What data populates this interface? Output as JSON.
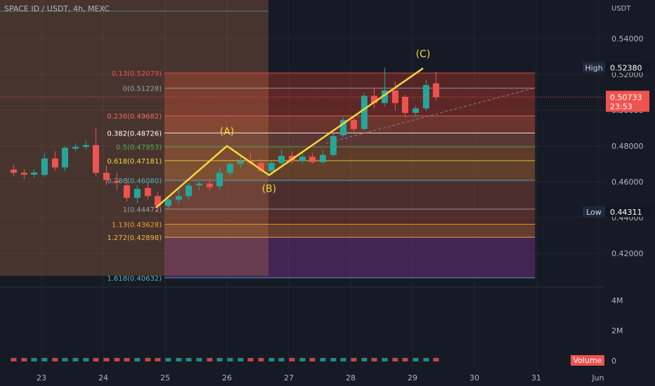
{
  "header": {
    "title": "SPACE ID / USDT, 4h, MEXC"
  },
  "axis": {
    "currency": "USDT",
    "price_ticks": [
      "0.54000",
      "0.52000",
      "0.50000",
      "0.48000",
      "0.46000",
      "0.44000",
      "0.42000"
    ],
    "volume_ticks": [
      "4M",
      "2M",
      "0"
    ],
    "time_labels": [
      "23",
      "24",
      "25",
      "26",
      "27",
      "28",
      "29",
      "30",
      "31",
      "Jun"
    ]
  },
  "badges": {
    "high_label": "High",
    "high_value": "0.52380",
    "low_label": "Low",
    "low_value": "0.44311",
    "last_value": "0.50733",
    "countdown": "23:53",
    "volume_label": "Volume"
  },
  "colors": {
    "up": "#26a69a",
    "down": "#ef5350",
    "wave": "#f5d63d",
    "background": "#161a25"
  },
  "chart_data": {
    "type": "candlestick",
    "symbol": "SPACE ID / USDT",
    "interval": "4h",
    "exchange": "MEXC",
    "ylim": [
      0.405,
      0.548
    ],
    "fib_levels": [
      {
        "ratio": "0.13",
        "label": "0.13(0.52079)",
        "price": 0.52079,
        "color": "#ef5350"
      },
      {
        "ratio": "0",
        "label": "0(0.51228)",
        "price": 0.51228,
        "color": "#9aa0a6"
      },
      {
        "ratio": "0.236",
        "label": "0.236(0.49682)",
        "price": 0.49682,
        "color": "#f06b5e"
      },
      {
        "ratio": "0.382",
        "label": "0.382(0.48726)",
        "price": 0.48726,
        "color": "#ffffff"
      },
      {
        "ratio": "0.5",
        "label": "0.5(0.47953)",
        "price": 0.47953,
        "color": "#4caf50"
      },
      {
        "ratio": "0.618",
        "label": "0.618(0.47181)",
        "price": 0.47181,
        "color": "#f5d63d"
      },
      {
        "ratio": "0.786",
        "label": "0.786(0.46080)",
        "price": 0.4608,
        "color": "#4fb3bf"
      },
      {
        "ratio": "1",
        "label": "1(0.44472)",
        "price": 0.44472,
        "color": "#9aa0a6"
      },
      {
        "ratio": "1.13",
        "label": "1.13(0.43628)",
        "price": 0.43628,
        "color": "#f59e2a"
      },
      {
        "ratio": "1.272",
        "label": "1.272(0.42898)",
        "price": 0.42898,
        "color": "#f5b14a"
      },
      {
        "ratio": "1.618",
        "label": "1.618(0.40632)",
        "price": 0.40632,
        "color": "#4fb3bf"
      }
    ],
    "waves": [
      {
        "label": "(A)",
        "date": 26.0,
        "price": 0.48
      },
      {
        "label": "(B)",
        "date": 26.68,
        "price": 0.4637
      },
      {
        "label": "(C)",
        "date": 29.17,
        "price": 0.5234
      }
    ],
    "wave_start": {
      "date": 24.85,
      "price": 0.4455
    },
    "high": 0.5238,
    "low": 0.44311,
    "last": 0.50733,
    "candles": [
      {
        "t": 22.55,
        "o": 0.4668,
        "h": 0.4695,
        "l": 0.463,
        "c": 0.465
      },
      {
        "t": 22.72,
        "o": 0.465,
        "h": 0.467,
        "l": 0.4615,
        "c": 0.464
      },
      {
        "t": 22.88,
        "o": 0.464,
        "h": 0.4668,
        "l": 0.4622,
        "c": 0.4652
      },
      {
        "t": 23.05,
        "o": 0.4638,
        "h": 0.476,
        "l": 0.4625,
        "c": 0.473
      },
      {
        "t": 23.22,
        "o": 0.473,
        "h": 0.477,
        "l": 0.466,
        "c": 0.468
      },
      {
        "t": 23.38,
        "o": 0.468,
        "h": 0.48,
        "l": 0.466,
        "c": 0.479
      },
      {
        "t": 23.55,
        "o": 0.4785,
        "h": 0.4815,
        "l": 0.477,
        "c": 0.4795
      },
      {
        "t": 23.72,
        "o": 0.4795,
        "h": 0.483,
        "l": 0.478,
        "c": 0.4805
      },
      {
        "t": 23.88,
        "o": 0.4805,
        "h": 0.49,
        "l": 0.463,
        "c": 0.465
      },
      {
        "t": 24.05,
        "o": 0.465,
        "h": 0.469,
        "l": 0.458,
        "c": 0.461
      },
      {
        "t": 24.22,
        "o": 0.4605,
        "h": 0.465,
        "l": 0.4555,
        "c": 0.4595
      },
      {
        "t": 24.38,
        "o": 0.458,
        "h": 0.462,
        "l": 0.449,
        "c": 0.451
      },
      {
        "t": 24.55,
        "o": 0.451,
        "h": 0.458,
        "l": 0.448,
        "c": 0.456
      },
      {
        "t": 24.72,
        "o": 0.4565,
        "h": 0.459,
        "l": 0.45,
        "c": 0.452
      },
      {
        "t": 24.88,
        "o": 0.452,
        "h": 0.454,
        "l": 0.4431,
        "c": 0.4465
      },
      {
        "t": 25.05,
        "o": 0.4465,
        "h": 0.451,
        "l": 0.445,
        "c": 0.45
      },
      {
        "t": 25.22,
        "o": 0.45,
        "h": 0.456,
        "l": 0.448,
        "c": 0.452
      },
      {
        "t": 25.38,
        "o": 0.452,
        "h": 0.459,
        "l": 0.45,
        "c": 0.458
      },
      {
        "t": 25.55,
        "o": 0.458,
        "h": 0.46,
        "l": 0.4555,
        "c": 0.459
      },
      {
        "t": 25.72,
        "o": 0.459,
        "h": 0.462,
        "l": 0.455,
        "c": 0.457
      },
      {
        "t": 25.88,
        "o": 0.4575,
        "h": 0.468,
        "l": 0.4555,
        "c": 0.465
      },
      {
        "t": 26.05,
        "o": 0.465,
        "h": 0.471,
        "l": 0.463,
        "c": 0.47
      },
      {
        "t": 26.22,
        "o": 0.47,
        "h": 0.475,
        "l": 0.468,
        "c": 0.4715
      },
      {
        "t": 26.38,
        "o": 0.4715,
        "h": 0.476,
        "l": 0.469,
        "c": 0.4705
      },
      {
        "t": 26.55,
        "o": 0.4705,
        "h": 0.473,
        "l": 0.4655,
        "c": 0.466
      },
      {
        "t": 26.72,
        "o": 0.466,
        "h": 0.4715,
        "l": 0.464,
        "c": 0.4705
      },
      {
        "t": 26.88,
        "o": 0.4705,
        "h": 0.478,
        "l": 0.469,
        "c": 0.4745
      },
      {
        "t": 27.05,
        "o": 0.4745,
        "h": 0.477,
        "l": 0.47,
        "c": 0.4715
      },
      {
        "t": 27.22,
        "o": 0.4715,
        "h": 0.477,
        "l": 0.47,
        "c": 0.474
      },
      {
        "t": 27.38,
        "o": 0.474,
        "h": 0.476,
        "l": 0.47,
        "c": 0.471
      },
      {
        "t": 27.55,
        "o": 0.471,
        "h": 0.478,
        "l": 0.47,
        "c": 0.475
      },
      {
        "t": 27.72,
        "o": 0.475,
        "h": 0.487,
        "l": 0.474,
        "c": 0.4855
      },
      {
        "t": 27.88,
        "o": 0.486,
        "h": 0.496,
        "l": 0.485,
        "c": 0.4945
      },
      {
        "t": 28.05,
        "o": 0.4945,
        "h": 0.496,
        "l": 0.488,
        "c": 0.4895
      },
      {
        "t": 28.22,
        "o": 0.4895,
        "h": 0.5095,
        "l": 0.4885,
        "c": 0.508
      },
      {
        "t": 28.38,
        "o": 0.508,
        "h": 0.5125,
        "l": 0.501,
        "c": 0.504
      },
      {
        "t": 28.55,
        "o": 0.504,
        "h": 0.5238,
        "l": 0.502,
        "c": 0.511
      },
      {
        "t": 28.72,
        "o": 0.511,
        "h": 0.516,
        "l": 0.5,
        "c": 0.504
      },
      {
        "t": 28.88,
        "o": 0.5075,
        "h": 0.5085,
        "l": 0.496,
        "c": 0.4985
      },
      {
        "t": 29.05,
        "o": 0.4985,
        "h": 0.5025,
        "l": 0.4965,
        "c": 0.501
      },
      {
        "t": 29.22,
        "o": 0.501,
        "h": 0.517,
        "l": 0.4995,
        "c": 0.514
      },
      {
        "t": 29.38,
        "o": 0.515,
        "h": 0.5215,
        "l": 0.5055,
        "c": 0.5073
      }
    ]
  }
}
